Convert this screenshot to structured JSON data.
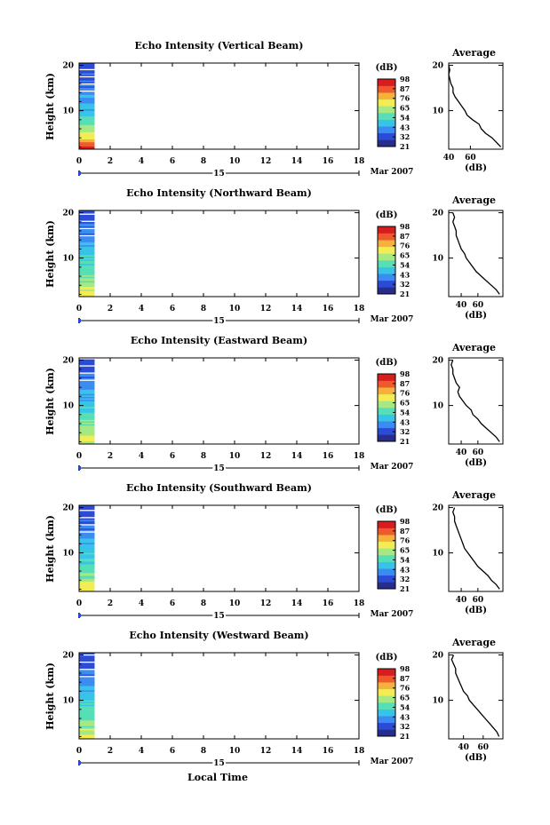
{
  "figure": {
    "date_label": "Mar 2007",
    "x_axis_title": "Local Time",
    "average_title": "Average",
    "colorbar_unit": "(dB)",
    "average_xlabel": "(dB)"
  },
  "chart_data": [
    {
      "type": "heatmap",
      "title": "Echo Intensity (Vertical Beam)",
      "ylabel": "Height (km)",
      "xlabel": "Local Time",
      "xlim": [
        0,
        18
      ],
      "xticks": [
        0,
        2,
        4,
        6,
        8,
        10,
        12,
        14,
        16,
        18
      ],
      "day_label": "15",
      "date_label": "Mar 2007",
      "ylim": [
        1.5,
        20.5
      ],
      "yticks": [
        10,
        20
      ],
      "data_x_range": [
        0,
        1
      ],
      "colorbar": {
        "unit": "(dB)",
        "ticks": [
          21,
          32,
          43,
          54,
          65,
          76,
          87,
          98
        ],
        "range": [
          21,
          98
        ]
      },
      "heat_profile": [
        [
          2.0,
          95
        ],
        [
          3.0,
          85
        ],
        [
          4.5,
          70
        ],
        [
          6.0,
          62
        ],
        [
          8.0,
          56
        ],
        [
          10.0,
          48
        ],
        [
          12.0,
          44
        ],
        [
          14.0,
          40
        ],
        [
          16.0,
          37
        ],
        [
          18.0,
          35
        ],
        [
          20.0,
          34
        ]
      ],
      "average": {
        "title": "Average",
        "xlabel": "(dB)",
        "xlim": [
          40,
          90
        ],
        "xticks": [
          40,
          60
        ],
        "yticks": [
          10,
          20
        ],
        "profile": [
          [
            2,
            88
          ],
          [
            3,
            84
          ],
          [
            4,
            80
          ],
          [
            5,
            74
          ],
          [
            6,
            70
          ],
          [
            7,
            68
          ],
          [
            8,
            62
          ],
          [
            9,
            57
          ],
          [
            10,
            55
          ],
          [
            11,
            52
          ],
          [
            12,
            49
          ],
          [
            13,
            46
          ],
          [
            14,
            44
          ],
          [
            15,
            44
          ],
          [
            16,
            42
          ],
          [
            17,
            41
          ],
          [
            18,
            40
          ],
          [
            19,
            41
          ],
          [
            20,
            40
          ]
        ]
      }
    },
    {
      "type": "heatmap",
      "title": "Echo Intensity (Northward Beam)",
      "ylabel": "Height (km)",
      "xlabel": "Local Time",
      "xlim": [
        0,
        18
      ],
      "xticks": [
        0,
        2,
        4,
        6,
        8,
        10,
        12,
        14,
        16,
        18
      ],
      "day_label": "15",
      "date_label": "Mar 2007",
      "ylim": [
        1.5,
        20.5
      ],
      "yticks": [
        10,
        20
      ],
      "data_x_range": [
        0,
        1
      ],
      "colorbar": {
        "unit": "(dB)",
        "ticks": [
          21,
          32,
          43,
          54,
          65,
          76,
          87,
          98
        ],
        "range": [
          21,
          98
        ]
      },
      "heat_profile": [
        [
          2.0,
          70
        ],
        [
          3.0,
          68
        ],
        [
          4.5,
          62
        ],
        [
          6.0,
          58
        ],
        [
          8.0,
          54
        ],
        [
          10.0,
          50
        ],
        [
          12.0,
          46
        ],
        [
          14.0,
          42
        ],
        [
          16.0,
          38
        ],
        [
          18.0,
          34
        ],
        [
          20.0,
          32
        ]
      ],
      "average": {
        "title": "Average",
        "xlabel": "(dB)",
        "xlim": [
          25,
          90
        ],
        "xticks": [
          40,
          60
        ],
        "yticks": [
          10,
          20
        ],
        "profile": [
          [
            2,
            86
          ],
          [
            3,
            82
          ],
          [
            4,
            76
          ],
          [
            5,
            70
          ],
          [
            6,
            64
          ],
          [
            7,
            58
          ],
          [
            8,
            54
          ],
          [
            9,
            50
          ],
          [
            10,
            46
          ],
          [
            11,
            44
          ],
          [
            12,
            40
          ],
          [
            13,
            38
          ],
          [
            14,
            36
          ],
          [
            15,
            34
          ],
          [
            16,
            34
          ],
          [
            17,
            32
          ],
          [
            18,
            30
          ],
          [
            19,
            32
          ],
          [
            20,
            30
          ]
        ]
      }
    },
    {
      "type": "heatmap",
      "title": "Echo Intensity (Eastward Beam)",
      "ylabel": "Height (km)",
      "xlabel": "Local Time",
      "xlim": [
        0,
        18
      ],
      "xticks": [
        0,
        2,
        4,
        6,
        8,
        10,
        12,
        14,
        16,
        18
      ],
      "day_label": "15",
      "date_label": "Mar 2007",
      "ylim": [
        1.5,
        20.5
      ],
      "yticks": [
        10,
        20
      ],
      "data_x_range": [
        0,
        1
      ],
      "colorbar": {
        "unit": "(dB)",
        "ticks": [
          21,
          32,
          43,
          54,
          65,
          76,
          87,
          98
        ],
        "range": [
          21,
          98
        ]
      },
      "heat_profile": [
        [
          2.0,
          70
        ],
        [
          3.0,
          68
        ],
        [
          4.5,
          62
        ],
        [
          6.0,
          58
        ],
        [
          8.0,
          54
        ],
        [
          10.0,
          50
        ],
        [
          12.0,
          46
        ],
        [
          14.0,
          42
        ],
        [
          16.0,
          38
        ],
        [
          18.0,
          34
        ],
        [
          20.0,
          32
        ]
      ],
      "average": {
        "title": "Average",
        "xlabel": "(dB)",
        "xlim": [
          25,
          90
        ],
        "xticks": [
          40,
          60
        ],
        "yticks": [
          10,
          20
        ],
        "profile": [
          [
            2,
            86
          ],
          [
            3,
            82
          ],
          [
            4,
            76
          ],
          [
            5,
            70
          ],
          [
            6,
            64
          ],
          [
            7,
            60
          ],
          [
            8,
            54
          ],
          [
            9,
            52
          ],
          [
            10,
            46
          ],
          [
            11,
            42
          ],
          [
            12,
            38
          ],
          [
            13,
            36
          ],
          [
            14,
            38
          ],
          [
            15,
            34
          ],
          [
            16,
            32
          ],
          [
            17,
            30
          ],
          [
            18,
            30
          ],
          [
            19,
            28
          ],
          [
            20,
            30
          ]
        ]
      }
    },
    {
      "type": "heatmap",
      "title": "Echo Intensity (Southward Beam)",
      "ylabel": "Height (km)",
      "xlabel": "Local Time",
      "xlim": [
        0,
        18
      ],
      "xticks": [
        0,
        2,
        4,
        6,
        8,
        10,
        12,
        14,
        16,
        18
      ],
      "day_label": "15",
      "date_label": "Mar 2007",
      "ylim": [
        1.5,
        20.5
      ],
      "yticks": [
        10,
        20
      ],
      "data_x_range": [
        0,
        1
      ],
      "colorbar": {
        "unit": "(dB)",
        "ticks": [
          21,
          32,
          43,
          54,
          65,
          76,
          87,
          98
        ],
        "range": [
          21,
          98
        ]
      },
      "heat_profile": [
        [
          2.0,
          70
        ],
        [
          3.0,
          68
        ],
        [
          4.5,
          62
        ],
        [
          6.0,
          58
        ],
        [
          8.0,
          54
        ],
        [
          10.0,
          50
        ],
        [
          12.0,
          46
        ],
        [
          14.0,
          42
        ],
        [
          16.0,
          38
        ],
        [
          18.0,
          34
        ],
        [
          20.0,
          32
        ]
      ],
      "average": {
        "title": "Average",
        "xlabel": "(dB)",
        "xlim": [
          25,
          90
        ],
        "xticks": [
          40,
          60
        ],
        "yticks": [
          10,
          20
        ],
        "profile": [
          [
            2,
            86
          ],
          [
            3,
            82
          ],
          [
            4,
            76
          ],
          [
            5,
            72
          ],
          [
            6,
            66
          ],
          [
            7,
            60
          ],
          [
            8,
            56
          ],
          [
            9,
            52
          ],
          [
            10,
            48
          ],
          [
            11,
            44
          ],
          [
            12,
            42
          ],
          [
            13,
            40
          ],
          [
            14,
            38
          ],
          [
            15,
            36
          ],
          [
            16,
            34
          ],
          [
            17,
            32
          ],
          [
            18,
            32
          ],
          [
            19,
            30
          ],
          [
            20,
            32
          ]
        ]
      }
    },
    {
      "type": "heatmap",
      "title": "Echo Intensity (Westward Beam)",
      "ylabel": "Height (km)",
      "xlabel": "Local Time",
      "xlim": [
        0,
        18
      ],
      "xticks": [
        0,
        2,
        4,
        6,
        8,
        10,
        12,
        14,
        16,
        18
      ],
      "day_label": "15",
      "date_label": "Mar 2007",
      "ylim": [
        1.5,
        20.5
      ],
      "yticks": [
        10,
        20
      ],
      "data_x_range": [
        0,
        1
      ],
      "colorbar": {
        "unit": "(dB)",
        "ticks": [
          21,
          32,
          43,
          54,
          65,
          76,
          87,
          98
        ],
        "range": [
          21,
          98
        ]
      },
      "heat_profile": [
        [
          2.0,
          70
        ],
        [
          3.0,
          68
        ],
        [
          4.5,
          62
        ],
        [
          6.0,
          58
        ],
        [
          8.0,
          54
        ],
        [
          10.0,
          50
        ],
        [
          12.0,
          46
        ],
        [
          14.0,
          42
        ],
        [
          16.0,
          38
        ],
        [
          18.0,
          34
        ],
        [
          20.0,
          32
        ]
      ],
      "average": {
        "title": "Average",
        "xlabel": "(dB)",
        "xlim": [
          25,
          80
        ],
        "xticks": [
          40,
          60
        ],
        "yticks": [
          10,
          20
        ],
        "profile": [
          [
            2,
            76
          ],
          [
            3,
            74
          ],
          [
            4,
            70
          ],
          [
            5,
            66
          ],
          [
            6,
            62
          ],
          [
            7,
            58
          ],
          [
            8,
            54
          ],
          [
            9,
            50
          ],
          [
            10,
            46
          ],
          [
            11,
            44
          ],
          [
            12,
            40
          ],
          [
            13,
            38
          ],
          [
            14,
            36
          ],
          [
            15,
            34
          ],
          [
            16,
            32
          ],
          [
            17,
            32
          ],
          [
            18,
            30
          ],
          [
            19,
            28
          ],
          [
            20,
            30
          ]
        ]
      }
    }
  ]
}
